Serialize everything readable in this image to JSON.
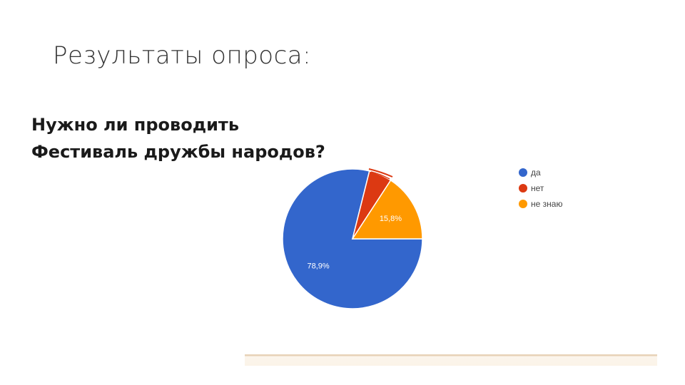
{
  "slide": {
    "title": "Результаты опроса:",
    "question_line1": "Нужно ли проводить",
    "question_line2": "Фестиваль дружбы народов?"
  },
  "chart_data": {
    "type": "pie",
    "title": "",
    "slices": [
      {
        "label": "да",
        "value": 78.9,
        "value_label": "78,9%",
        "color": "#3366cc"
      },
      {
        "label": "нет",
        "value": 5.3,
        "value_label": "",
        "color": "#dc3912"
      },
      {
        "label": "не знаю",
        "value": 15.8,
        "value_label": "15,8%",
        "color": "#ff9900"
      }
    ],
    "legend": {
      "placement": "right",
      "items": [
        "да",
        "нет",
        "не знаю"
      ]
    }
  }
}
